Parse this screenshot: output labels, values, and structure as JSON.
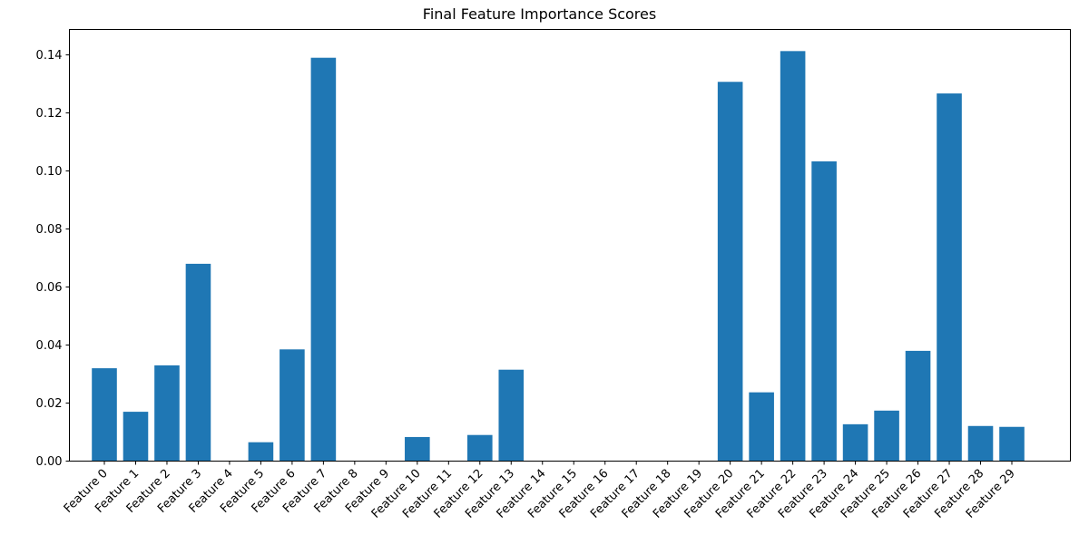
{
  "chart_data": {
    "type": "bar",
    "title": "Final Feature Importance Scores",
    "xlabel": "",
    "ylabel": "",
    "ylim": [
      0,
      0.148
    ],
    "yticks": [
      "0.00",
      "0.02",
      "0.04",
      "0.06",
      "0.08",
      "0.10",
      "0.12",
      "0.14"
    ],
    "ytick_values": [
      0,
      0.02,
      0.04,
      0.06,
      0.08,
      0.1,
      0.12,
      0.14
    ],
    "grid": false,
    "legend": null,
    "bar_color": "#1f77b4",
    "xtick_rotation": 45,
    "categories": [
      "Feature 0",
      "Feature 1",
      "Feature 2",
      "Feature 3",
      "Feature 4",
      "Feature 5",
      "Feature 6",
      "Feature 7",
      "Feature 8",
      "Feature 9",
      "Feature 10",
      "Feature 11",
      "Feature 12",
      "Feature 13",
      "Feature 14",
      "Feature 15",
      "Feature 16",
      "Feature 17",
      "Feature 18",
      "Feature 19",
      "Feature 20",
      "Feature 21",
      "Feature 22",
      "Feature 23",
      "Feature 24",
      "Feature 25",
      "Feature 26",
      "Feature 27",
      "Feature 28",
      "Feature 29"
    ],
    "values": [
      0.032,
      0.017,
      0.033,
      0.068,
      0.0,
      0.0065,
      0.0385,
      0.139,
      0.0,
      0.0,
      0.0083,
      0.0,
      0.009,
      0.0315,
      0.0,
      0.0,
      0.0,
      0.0,
      0.0,
      0.0,
      0.1307,
      0.0237,
      0.1413,
      0.1033,
      0.0127,
      0.0174,
      0.038,
      0.1267,
      0.0121,
      0.0118
    ]
  }
}
